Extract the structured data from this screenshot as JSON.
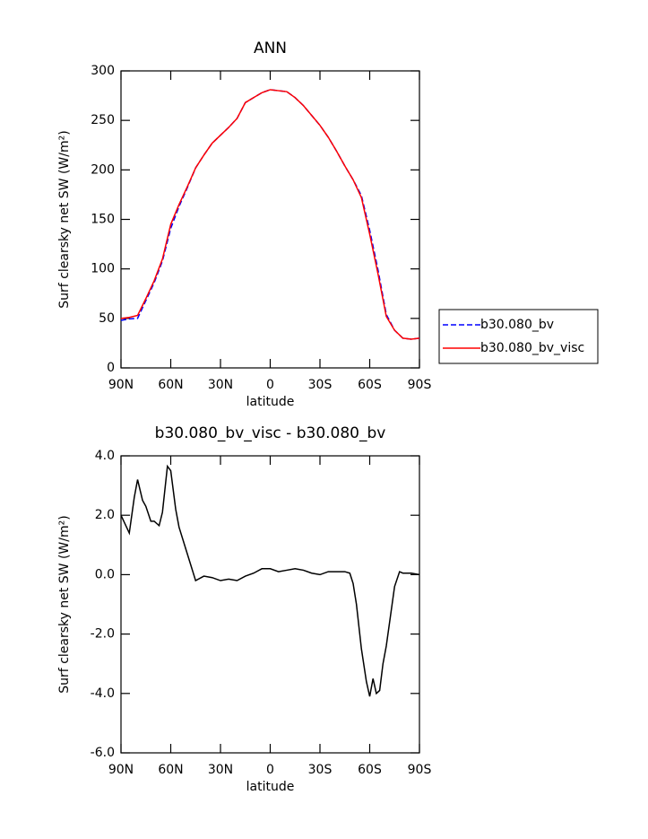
{
  "chart_data": [
    {
      "type": "line",
      "title": "ANN",
      "ylabel": "Surf clearsky net SW (W/m²)",
      "xlabel": "latitude",
      "x": [
        90,
        85,
        80,
        75,
        70,
        65,
        60,
        55,
        50,
        45,
        40,
        35,
        30,
        25,
        20,
        15,
        10,
        5,
        0,
        -5,
        -10,
        -15,
        -20,
        -25,
        -30,
        -35,
        -40,
        -45,
        -50,
        -55,
        -60,
        -65,
        -70,
        -75,
        -80,
        -85,
        -90
      ],
      "xlim": [
        90,
        -90
      ],
      "xticks": [
        {
          "value": 90,
          "label": "90N"
        },
        {
          "value": 60,
          "label": "60N"
        },
        {
          "value": 30,
          "label": "30N"
        },
        0,
        {
          "value": -30,
          "label": "30S"
        },
        {
          "value": -60,
          "label": "60S"
        },
        {
          "value": -90,
          "label": "90S"
        }
      ],
      "ylim": [
        0,
        300
      ],
      "yticks": [
        0,
        50,
        100,
        150,
        200,
        250,
        300
      ],
      "legend": "right",
      "series": [
        {
          "name": "b30.080_bv",
          "color": "#0000ff",
          "linestyle": "dashed",
          "values": [
            48,
            49.5,
            50,
            68,
            86,
            108,
            141,
            163,
            182,
            202,
            215,
            227,
            235,
            243,
            252,
            268,
            273,
            278,
            281,
            280,
            279,
            273,
            265,
            255,
            245,
            233,
            219,
            204,
            190,
            174,
            139,
            99,
            54,
            38,
            30,
            29,
            30
          ]
        },
        {
          "name": "b30.080_bv_visc",
          "color": "#ff0000",
          "linestyle": "solid",
          "values": [
            50,
            51,
            53,
            70,
            88,
            110,
            145,
            165,
            183,
            202,
            215,
            227,
            235,
            243,
            252,
            268,
            273,
            278,
            281,
            280,
            279,
            273,
            265,
            255,
            245,
            233,
            219,
            204,
            190,
            172,
            135,
            95,
            52,
            38,
            30,
            29,
            30
          ]
        }
      ]
    },
    {
      "type": "line",
      "title": "b30.080_bv_visc - b30.080_bv",
      "ylabel": "Surf clearsky net SW (W/m²)",
      "xlabel": "latitude",
      "x": [
        90,
        85,
        82,
        80,
        77,
        75,
        72,
        70,
        67,
        65,
        62,
        60,
        57,
        55,
        50,
        45,
        40,
        35,
        30,
        25,
        20,
        15,
        10,
        5,
        0,
        -5,
        -10,
        -15,
        -20,
        -25,
        -30,
        -35,
        -40,
        -45,
        -48,
        -50,
        -52,
        -55,
        -58,
        -60,
        -62,
        -64,
        -66,
        -68,
        -70,
        -75,
        -78,
        -80,
        -85,
        -90
      ],
      "xlim": [
        90,
        -90
      ],
      "xticks": [
        {
          "value": 90,
          "label": "90N"
        },
        {
          "value": 60,
          "label": "60N"
        },
        {
          "value": 30,
          "label": "30N"
        },
        0,
        {
          "value": -30,
          "label": "30S"
        },
        {
          "value": -60,
          "label": "60S"
        },
        {
          "value": -90,
          "label": "90S"
        }
      ],
      "ylim": [
        -6,
        4
      ],
      "yticks": [
        {
          "value": -6,
          "label": "-6.0"
        },
        {
          "value": -4,
          "label": "-4.0"
        },
        {
          "value": -2,
          "label": "-2.0"
        },
        {
          "value": 0,
          "label": "0.0"
        },
        {
          "value": 2,
          "label": "2.0"
        },
        {
          "value": 4,
          "label": "4.0"
        }
      ],
      "series": [
        {
          "color": "#000000",
          "linestyle": "solid",
          "values": [
            2.0,
            1.4,
            2.6,
            3.2,
            2.5,
            2.3,
            1.8,
            1.8,
            1.65,
            2.1,
            3.65,
            3.5,
            2.2,
            1.6,
            0.7,
            -0.2,
            -0.05,
            -0.1,
            -0.2,
            -0.15,
            -0.2,
            -0.05,
            0.05,
            0.2,
            0.2,
            0.1,
            0.15,
            0.2,
            0.15,
            0.05,
            0.0,
            0.1,
            0.1,
            0.1,
            0.05,
            -0.3,
            -1.0,
            -2.5,
            -3.6,
            -4.1,
            -3.5,
            -4.0,
            -3.9,
            -3.0,
            -2.4,
            -0.4,
            0.1,
            0.05,
            0.05,
            0.0
          ]
        }
      ]
    }
  ]
}
